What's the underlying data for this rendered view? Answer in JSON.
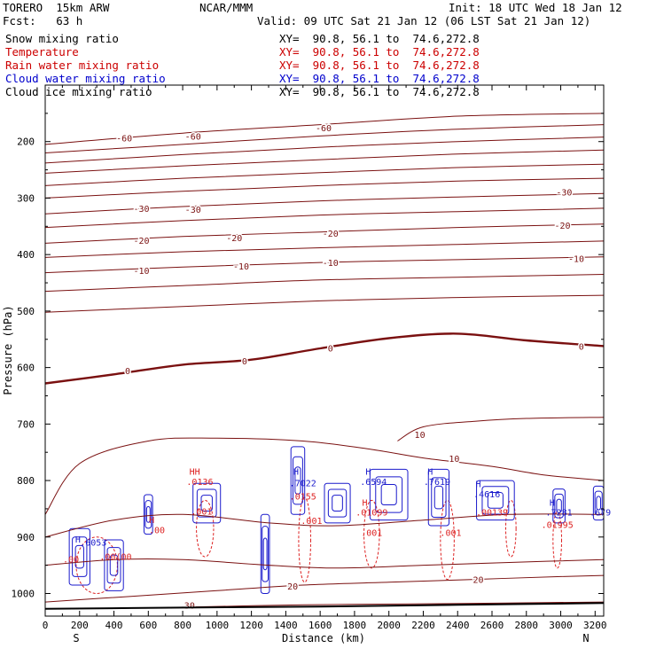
{
  "header": {
    "model": "TORERO  15km ARW",
    "org": "NCAR/MMM",
    "init": "Init: 18 UTC Wed 18 Jan 12",
    "fcst": "Fcst:   63 h",
    "valid": "Valid: 09 UTC Sat 21 Jan 12 (06 LST Sat 21 Jan 12)"
  },
  "fields": [
    {
      "name": "Snow mixing ratio",
      "xsect": "XY=  90.8, 56.1 to  74.6,272.8",
      "color": "#000000"
    },
    {
      "name": "Temperature",
      "xsect": "XY=  90.8, 56.1 to  74.6,272.8",
      "color": "#cc0000"
    },
    {
      "name": "Rain water mixing ratio",
      "xsect": "XY=  90.8, 56.1 to  74.6,272.8",
      "color": "#cc0000"
    },
    {
      "name": "Cloud water mixing ratio",
      "xsect": "XY=  90.8, 56.1 to  74.6,272.8",
      "color": "#0000cc"
    },
    {
      "name": "Cloud ice mixing ratio",
      "xsect": "XY=  90.8, 56.1 to  74.6,272.8",
      "color": "#000000"
    }
  ],
  "colors": {
    "temperature": "#7a1010",
    "rain": "#dd2222",
    "cloud": "#1a1acc",
    "ground": "#000000"
  },
  "chart_data": {
    "type": "contour",
    "xlabel": "Distance (km)",
    "ylabel": "Pressure (hPa)",
    "xlim": [
      0,
      3250
    ],
    "ylim": [
      1040,
      100
    ],
    "x_ticks": [
      0,
      200,
      400,
      600,
      800,
      1000,
      1200,
      1400,
      1600,
      1800,
      2000,
      2200,
      2400,
      2600,
      2800,
      3000,
      3200
    ],
    "y_ticks": [
      200,
      300,
      400,
      500,
      600,
      700,
      800,
      900,
      1000
    ],
    "direction_labels": {
      "left": "S",
      "right": "N"
    },
    "isotherms": [
      {
        "label": "-60",
        "pts": [
          [
            0,
            205
          ],
          [
            800,
            185
          ],
          [
            1600,
            170
          ],
          [
            2400,
            155
          ],
          [
            3250,
            150
          ]
        ],
        "label_at": [
          [
            460,
            193
          ],
          [
            860,
            190
          ],
          [
            1620,
            175
          ]
        ]
      },
      {
        "label": "",
        "pts": [
          [
            0,
            220
          ],
          [
            800,
            205
          ],
          [
            1600,
            190
          ],
          [
            2400,
            178
          ],
          [
            3250,
            170
          ]
        ]
      },
      {
        "label": "",
        "pts": [
          [
            0,
            238
          ],
          [
            800,
            223
          ],
          [
            1600,
            210
          ],
          [
            2400,
            200
          ],
          [
            3250,
            192
          ]
        ]
      },
      {
        "label": "",
        "pts": [
          [
            0,
            256
          ],
          [
            800,
            243
          ],
          [
            1600,
            232
          ],
          [
            2400,
            222
          ],
          [
            3250,
            215
          ]
        ]
      },
      {
        "label": "",
        "pts": [
          [
            0,
            278
          ],
          [
            800,
            265
          ],
          [
            1600,
            255
          ],
          [
            2400,
            246
          ],
          [
            3250,
            240
          ]
        ]
      },
      {
        "label": "",
        "pts": [
          [
            0,
            300
          ],
          [
            800,
            288
          ],
          [
            1600,
            278
          ],
          [
            2400,
            270
          ],
          [
            3250,
            265
          ]
        ]
      },
      {
        "label": "-30",
        "pts": [
          [
            0,
            328
          ],
          [
            800,
            315
          ],
          [
            1600,
            305
          ],
          [
            2400,
            298
          ],
          [
            3250,
            292
          ]
        ],
        "label_at": [
          [
            560,
            318
          ],
          [
            860,
            320
          ],
          [
            3020,
            289
          ]
        ]
      },
      {
        "label": "",
        "pts": [
          [
            0,
            352
          ],
          [
            800,
            340
          ],
          [
            1600,
            330
          ],
          [
            2400,
            324
          ],
          [
            3250,
            318
          ]
        ]
      },
      {
        "label": "-20",
        "pts": [
          [
            0,
            380
          ],
          [
            800,
            368
          ],
          [
            1600,
            360
          ],
          [
            2400,
            352
          ],
          [
            3250,
            346
          ]
        ],
        "label_at": [
          [
            560,
            375
          ],
          [
            1100,
            370
          ],
          [
            1660,
            362
          ],
          [
            3010,
            348
          ]
        ]
      },
      {
        "label": "",
        "pts": [
          [
            0,
            405
          ],
          [
            800,
            395
          ],
          [
            1600,
            388
          ],
          [
            2400,
            382
          ],
          [
            3250,
            376
          ]
        ]
      },
      {
        "label": "-10",
        "pts": [
          [
            0,
            432
          ],
          [
            800,
            422
          ],
          [
            1600,
            414
          ],
          [
            2400,
            409
          ],
          [
            3250,
            404
          ]
        ],
        "label_at": [
          [
            560,
            428
          ],
          [
            1140,
            420
          ],
          [
            1660,
            414
          ],
          [
            3090,
            407
          ]
        ]
      },
      {
        "label": "",
        "pts": [
          [
            0,
            465
          ],
          [
            800,
            455
          ],
          [
            1600,
            445
          ],
          [
            2400,
            440
          ],
          [
            3250,
            435
          ]
        ]
      },
      {
        "label": "",
        "pts": [
          [
            0,
            502
          ],
          [
            800,
            492
          ],
          [
            1600,
            482
          ],
          [
            2400,
            476
          ],
          [
            3250,
            472
          ]
        ]
      },
      {
        "label": "0",
        "pts": [
          [
            0,
            628
          ],
          [
            400,
            612
          ],
          [
            800,
            595
          ],
          [
            1200,
            586
          ],
          [
            1600,
            566
          ],
          [
            2000,
            548
          ],
          [
            2400,
            540
          ],
          [
            2800,
            552
          ],
          [
            3250,
            562
          ]
        ],
        "bold": true,
        "label_at": [
          [
            480,
            605
          ],
          [
            1160,
            588
          ],
          [
            1660,
            565
          ],
          [
            3120,
            562
          ]
        ]
      },
      {
        "label": "10",
        "pts": [
          [
            2050,
            730
          ],
          [
            2200,
            705
          ],
          [
            2500,
            695
          ],
          [
            2800,
            690
          ],
          [
            3250,
            688
          ]
        ],
        "label_at": [
          [
            2180,
            718
          ]
        ]
      },
      {
        "label": "10",
        "pts": [
          [
            0,
            860
          ],
          [
            200,
            770
          ],
          [
            600,
            730
          ],
          [
            1000,
            725
          ],
          [
            1500,
            730
          ],
          [
            1900,
            745
          ],
          [
            2200,
            760
          ],
          [
            2600,
            775
          ],
          [
            2900,
            790
          ],
          [
            3250,
            800
          ]
        ],
        "label_at": [
          [
            2380,
            761
          ]
        ]
      },
      {
        "label": "",
        "pts": [
          [
            0,
            900
          ],
          [
            400,
            870
          ],
          [
            800,
            860
          ],
          [
            1300,
            875
          ],
          [
            1700,
            880
          ],
          [
            2200,
            870
          ],
          [
            2700,
            860
          ],
          [
            3250,
            860
          ]
        ]
      },
      {
        "label": "",
        "pts": [
          [
            0,
            950
          ],
          [
            400,
            940
          ],
          [
            800,
            940
          ],
          [
            1300,
            950
          ],
          [
            1700,
            955
          ],
          [
            2200,
            950
          ],
          [
            2700,
            945
          ],
          [
            3250,
            940
          ]
        ]
      },
      {
        "label": "20",
        "pts": [
          [
            0,
            1015
          ],
          [
            500,
            1005
          ],
          [
            1000,
            995
          ],
          [
            1500,
            985
          ],
          [
            2000,
            980
          ],
          [
            2500,
            975
          ],
          [
            3000,
            970
          ],
          [
            3250,
            968
          ]
        ],
        "label_at": [
          [
            1440,
            987
          ],
          [
            2520,
            975
          ]
        ]
      },
      {
        "label": "30",
        "pts": [
          [
            700,
            1025
          ],
          [
            1500,
            1020
          ],
          [
            2300,
            1018
          ],
          [
            3250,
            1015
          ]
        ],
        "label_at": [
          [
            840,
            1020
          ]
        ]
      }
    ],
    "ground": [
      [
        0,
        1027
      ],
      [
        800,
        1025
      ],
      [
        1600,
        1023
      ],
      [
        2400,
        1020
      ],
      [
        3250,
        1017
      ]
    ],
    "cloud_water": [
      {
        "cx": 200,
        "cy": 935,
        "rx": 60,
        "ry": 50
      },
      {
        "cx": 400,
        "cy": 950,
        "rx": 55,
        "ry": 45
      },
      {
        "cx": 600,
        "cy": 860,
        "rx": 25,
        "ry": 35
      },
      {
        "cx": 940,
        "cy": 840,
        "rx": 80,
        "ry": 35
      },
      {
        "cx": 1280,
        "cy": 930,
        "rx": 25,
        "ry": 70
      },
      {
        "cx": 1470,
        "cy": 800,
        "rx": 40,
        "ry": 60
      },
      {
        "cx": 1700,
        "cy": 840,
        "rx": 75,
        "ry": 35
      },
      {
        "cx": 2000,
        "cy": 825,
        "rx": 110,
        "ry": 45
      },
      {
        "cx": 2290,
        "cy": 830,
        "rx": 60,
        "ry": 50
      },
      {
        "cx": 2620,
        "cy": 835,
        "rx": 110,
        "ry": 35
      },
      {
        "cx": 2990,
        "cy": 845,
        "rx": 35,
        "ry": 30
      },
      {
        "cx": 3220,
        "cy": 840,
        "rx": 30,
        "ry": 30
      }
    ],
    "rain": [
      {
        "cx": 300,
        "cy": 950,
        "rx": 120,
        "ry": 50
      },
      {
        "cx": 930,
        "cy": 885,
        "rx": 50,
        "ry": 50
      },
      {
        "cx": 1510,
        "cy": 905,
        "rx": 35,
        "ry": 75
      },
      {
        "cx": 1900,
        "cy": 895,
        "rx": 45,
        "ry": 60
      },
      {
        "cx": 2340,
        "cy": 905,
        "rx": 40,
        "ry": 70
      },
      {
        "cx": 2710,
        "cy": 885,
        "rx": 30,
        "ry": 50
      },
      {
        "cx": 2980,
        "cy": 905,
        "rx": 25,
        "ry": 50
      }
    ],
    "labels": [
      {
        "text": "H",
        "x": 190,
        "y": 910,
        "series": "cloud"
      },
      {
        "text": ".6053",
        "x": 280,
        "y": 915,
        "series": "cloud"
      },
      {
        "text": ".00",
        "x": 150,
        "y": 945,
        "series": "rain"
      },
      {
        "text": ".00(00",
        "x": 410,
        "y": 940,
        "series": "rain"
      },
      {
        "text": "H",
        "x": 620,
        "y": 875,
        "series": "rain"
      },
      {
        "text": ".00",
        "x": 650,
        "y": 893,
        "series": "rain"
      },
      {
        "text": "HH",
        "x": 870,
        "y": 790,
        "series": "rain"
      },
      {
        "text": ".0136",
        "x": 900,
        "y": 808,
        "series": "rain"
      },
      {
        "text": ".001",
        "x": 910,
        "y": 860,
        "series": "rain"
      },
      {
        "text": "H",
        "x": 1460,
        "y": 790,
        "series": "cloud"
      },
      {
        "text": ".7022",
        "x": 1500,
        "y": 810,
        "series": "cloud"
      },
      {
        "text": ".0155",
        "x": 1500,
        "y": 834,
        "series": "rain"
      },
      {
        "text": ".001",
        "x": 1550,
        "y": 877,
        "series": "rain"
      },
      {
        "text": "H",
        "x": 1880,
        "y": 790,
        "series": "cloud"
      },
      {
        "text": ".6594",
        "x": 1910,
        "y": 808,
        "series": "cloud"
      },
      {
        "text": "H",
        "x": 1860,
        "y": 845,
        "series": "rain"
      },
      {
        "text": ".01099",
        "x": 1900,
        "y": 862,
        "series": "rain"
      },
      {
        "text": ".001",
        "x": 1900,
        "y": 898,
        "series": "rain"
      },
      {
        "text": "H",
        "x": 2240,
        "y": 790,
        "series": "cloud"
      },
      {
        "text": ".7619",
        "x": 2280,
        "y": 808,
        "series": "cloud"
      },
      {
        "text": ".001",
        "x": 2360,
        "y": 898,
        "series": "rain"
      },
      {
        "text": "H",
        "x": 2520,
        "y": 812,
        "series": "cloud"
      },
      {
        "text": ".4616",
        "x": 2570,
        "y": 830,
        "series": "cloud"
      },
      {
        "text": ".00139",
        "x": 2600,
        "y": 862,
        "series": "rain"
      },
      {
        "text": "H",
        "x": 2950,
        "y": 845,
        "series": "cloud"
      },
      {
        "text": ".7281",
        "x": 2990,
        "y": 862,
        "series": "cloud"
      },
      {
        "text": ".01995",
        "x": 2980,
        "y": 884,
        "series": "rain"
      },
      {
        "text": ".679",
        "x": 3230,
        "y": 862,
        "series": "cloud"
      }
    ]
  }
}
